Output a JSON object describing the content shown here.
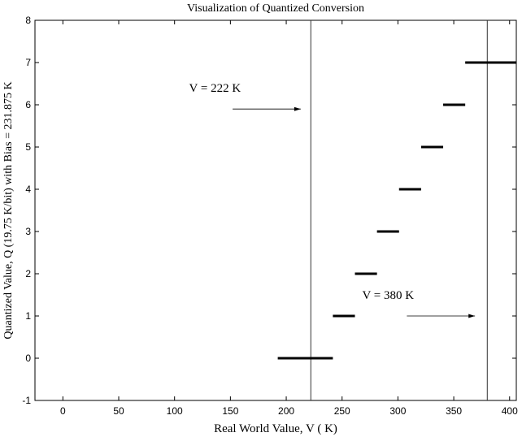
{
  "chart_data": {
    "type": "line",
    "title": "Visualization of Quantized Conversion",
    "xlabel": "Real World Value, V ( K)",
    "ylabel": "Quantized Value, Q (19.75 K/bit) with Bias = 231.875  K",
    "xlim": [
      -25,
      406
    ],
    "ylim": [
      -1,
      8
    ],
    "xticks": [
      0,
      50,
      100,
      150,
      200,
      250,
      300,
      350,
      400
    ],
    "yticks": [
      -1,
      0,
      1,
      2,
      3,
      4,
      5,
      6,
      7,
      8
    ],
    "grid": false,
    "steps": [
      {
        "level": 0,
        "x_start": 192.4,
        "x_end": 241.75
      },
      {
        "level": 1,
        "x_start": 241.75,
        "x_end": 261.5
      },
      {
        "level": 2,
        "x_start": 261.5,
        "x_end": 281.25
      },
      {
        "level": 3,
        "x_start": 281.25,
        "x_end": 301
      },
      {
        "level": 4,
        "x_start": 301,
        "x_end": 320.75
      },
      {
        "level": 5,
        "x_start": 320.75,
        "x_end": 340.5
      },
      {
        "level": 6,
        "x_start": 340.5,
        "x_end": 360.25
      },
      {
        "level": 7,
        "x_start": 360.25,
        "x_end": 406
      }
    ],
    "vertical_lines": [
      222,
      380
    ],
    "annotations": [
      {
        "text": "V = 222 K",
        "text_x": 113,
        "text_y": 6.4,
        "arrow_from": [
          152,
          5.9
        ],
        "arrow_to": [
          213,
          5.9
        ]
      },
      {
        "text": "V = 380 K",
        "text_x": 268,
        "text_y": 1.5,
        "arrow_from": [
          308,
          1.0
        ],
        "arrow_to": [
          369,
          1.0
        ]
      }
    ]
  }
}
